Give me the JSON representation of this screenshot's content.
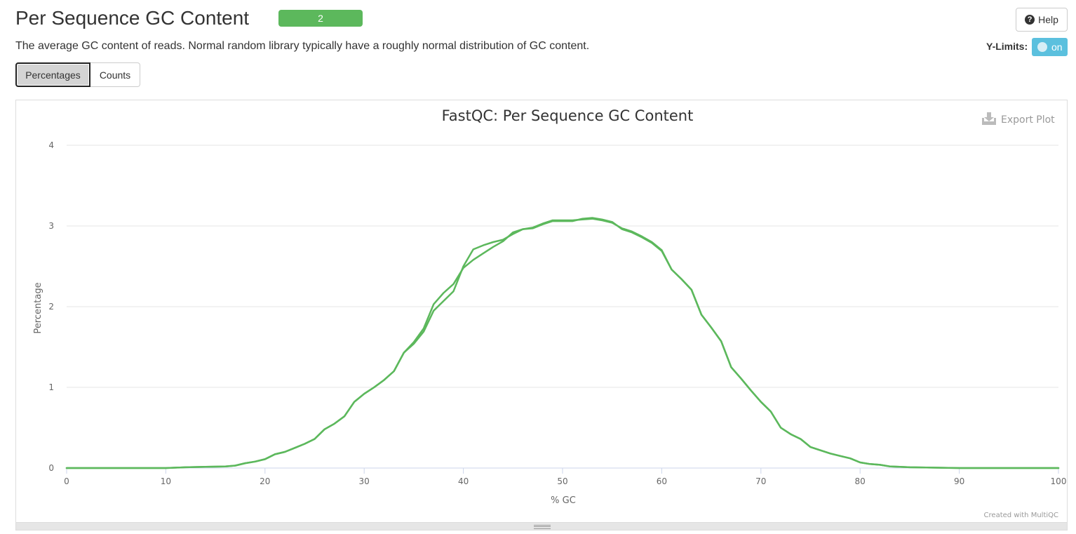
{
  "header": {
    "title": "Per Sequence GC Content",
    "badge": "2",
    "help_label": "Help",
    "description": "The average GC content of reads. Normal random library typically have a roughly normal distribution of GC content.",
    "ylimits_label": "Y-Limits:",
    "ylimits_state": "on"
  },
  "tabs": [
    {
      "label": "Percentages",
      "active": true
    },
    {
      "label": "Counts",
      "active": false
    }
  ],
  "export_label": "Export Plot",
  "credit": "Created with MultiQC",
  "colors": {
    "series": "#5cb85c",
    "accent": "#5bc0de",
    "badge": "#5cb85c"
  },
  "chart_data": {
    "type": "line",
    "title": "FastQC: Per Sequence GC Content",
    "xlabel": "% GC",
    "ylabel": "Percentage",
    "xlim": [
      0,
      100
    ],
    "ylim": [
      0,
      4
    ],
    "xticks": [
      0,
      10,
      20,
      30,
      40,
      50,
      60,
      70,
      80,
      90,
      100
    ],
    "yticks": [
      0,
      1,
      2,
      3,
      4
    ],
    "grid": true,
    "series": [
      {
        "values": [
          [
            0,
            0
          ],
          [
            10,
            0
          ],
          [
            12,
            0.01
          ],
          [
            14,
            0.015
          ],
          [
            16,
            0.02
          ],
          [
            17,
            0.03
          ],
          [
            18,
            0.06
          ],
          [
            19,
            0.08
          ],
          [
            20,
            0.11
          ],
          [
            21,
            0.17
          ],
          [
            22,
            0.2
          ],
          [
            23,
            0.25
          ],
          [
            24,
            0.3
          ],
          [
            25,
            0.36
          ],
          [
            26,
            0.48
          ],
          [
            27,
            0.55
          ],
          [
            28,
            0.64
          ],
          [
            29,
            0.82
          ],
          [
            30,
            0.92
          ],
          [
            31,
            1.0
          ],
          [
            32,
            1.09
          ],
          [
            33,
            1.2
          ],
          [
            34,
            1.43
          ],
          [
            35,
            1.54
          ],
          [
            36,
            1.69
          ],
          [
            37,
            1.95
          ],
          [
            38,
            2.07
          ],
          [
            39,
            2.19
          ],
          [
            40,
            2.5
          ],
          [
            41,
            2.71
          ],
          [
            42,
            2.76
          ],
          [
            43,
            2.8
          ],
          [
            44,
            2.83
          ],
          [
            45,
            2.9
          ],
          [
            46,
            2.96
          ],
          [
            47,
            2.98
          ],
          [
            48,
            3.03
          ],
          [
            49,
            3.07
          ],
          [
            50,
            3.07
          ],
          [
            51,
            3.07
          ],
          [
            52,
            3.08
          ],
          [
            53,
            3.09
          ],
          [
            54,
            3.07
          ],
          [
            55,
            3.04
          ],
          [
            56,
            2.97
          ],
          [
            57,
            2.93
          ],
          [
            58,
            2.87
          ],
          [
            59,
            2.8
          ],
          [
            60,
            2.7
          ],
          [
            61,
            2.46
          ],
          [
            62,
            2.34
          ],
          [
            63,
            2.21
          ],
          [
            64,
            1.9
          ],
          [
            65,
            1.74
          ],
          [
            66,
            1.57
          ],
          [
            67,
            1.25
          ],
          [
            68,
            1.11
          ],
          [
            69,
            0.96
          ],
          [
            70,
            0.82
          ],
          [
            71,
            0.7
          ],
          [
            72,
            0.5
          ],
          [
            73,
            0.42
          ],
          [
            74,
            0.36
          ],
          [
            75,
            0.26
          ],
          [
            76,
            0.22
          ],
          [
            77,
            0.18
          ],
          [
            78,
            0.15
          ],
          [
            79,
            0.12
          ],
          [
            80,
            0.07
          ],
          [
            81,
            0.05
          ],
          [
            82,
            0.04
          ],
          [
            83,
            0.02
          ],
          [
            84,
            0.015
          ],
          [
            85,
            0.01
          ],
          [
            90,
            0
          ],
          [
            100,
            0
          ]
        ]
      },
      {
        "values": [
          [
            0,
            0
          ],
          [
            10,
            0
          ],
          [
            12,
            0.01
          ],
          [
            14,
            0.015
          ],
          [
            16,
            0.02
          ],
          [
            17,
            0.03
          ],
          [
            18,
            0.06
          ],
          [
            19,
            0.08
          ],
          [
            20,
            0.11
          ],
          [
            21,
            0.17
          ],
          [
            22,
            0.2
          ],
          [
            23,
            0.25
          ],
          [
            24,
            0.3
          ],
          [
            25,
            0.36
          ],
          [
            26,
            0.48
          ],
          [
            27,
            0.55
          ],
          [
            28,
            0.64
          ],
          [
            29,
            0.82
          ],
          [
            30,
            0.92
          ],
          [
            31,
            1.0
          ],
          [
            32,
            1.09
          ],
          [
            33,
            1.2
          ],
          [
            34,
            1.43
          ],
          [
            35,
            1.56
          ],
          [
            36,
            1.73
          ],
          [
            37,
            2.03
          ],
          [
            38,
            2.17
          ],
          [
            39,
            2.28
          ],
          [
            40,
            2.48
          ],
          [
            41,
            2.58
          ],
          [
            42,
            2.66
          ],
          [
            43,
            2.74
          ],
          [
            44,
            2.81
          ],
          [
            45,
            2.92
          ],
          [
            46,
            2.96
          ],
          [
            47,
            2.97
          ],
          [
            48,
            3.02
          ],
          [
            49,
            3.06
          ],
          [
            50,
            3.06
          ],
          [
            51,
            3.06
          ],
          [
            52,
            3.09
          ],
          [
            53,
            3.1
          ],
          [
            54,
            3.08
          ],
          [
            55,
            3.05
          ],
          [
            56,
            2.96
          ],
          [
            57,
            2.92
          ],
          [
            58,
            2.86
          ],
          [
            59,
            2.79
          ],
          [
            60,
            2.69
          ],
          [
            61,
            2.46
          ],
          [
            62,
            2.34
          ],
          [
            63,
            2.21
          ],
          [
            64,
            1.9
          ],
          [
            65,
            1.74
          ],
          [
            66,
            1.57
          ],
          [
            67,
            1.25
          ],
          [
            68,
            1.11
          ],
          [
            69,
            0.96
          ],
          [
            70,
            0.82
          ],
          [
            71,
            0.7
          ],
          [
            72,
            0.5
          ],
          [
            73,
            0.42
          ],
          [
            74,
            0.36
          ],
          [
            75,
            0.26
          ],
          [
            76,
            0.22
          ],
          [
            77,
            0.18
          ],
          [
            78,
            0.15
          ],
          [
            79,
            0.12
          ],
          [
            80,
            0.07
          ],
          [
            81,
            0.05
          ],
          [
            82,
            0.04
          ],
          [
            83,
            0.02
          ],
          [
            84,
            0.015
          ],
          [
            85,
            0.01
          ],
          [
            90,
            0
          ],
          [
            100,
            0
          ]
        ]
      }
    ]
  }
}
